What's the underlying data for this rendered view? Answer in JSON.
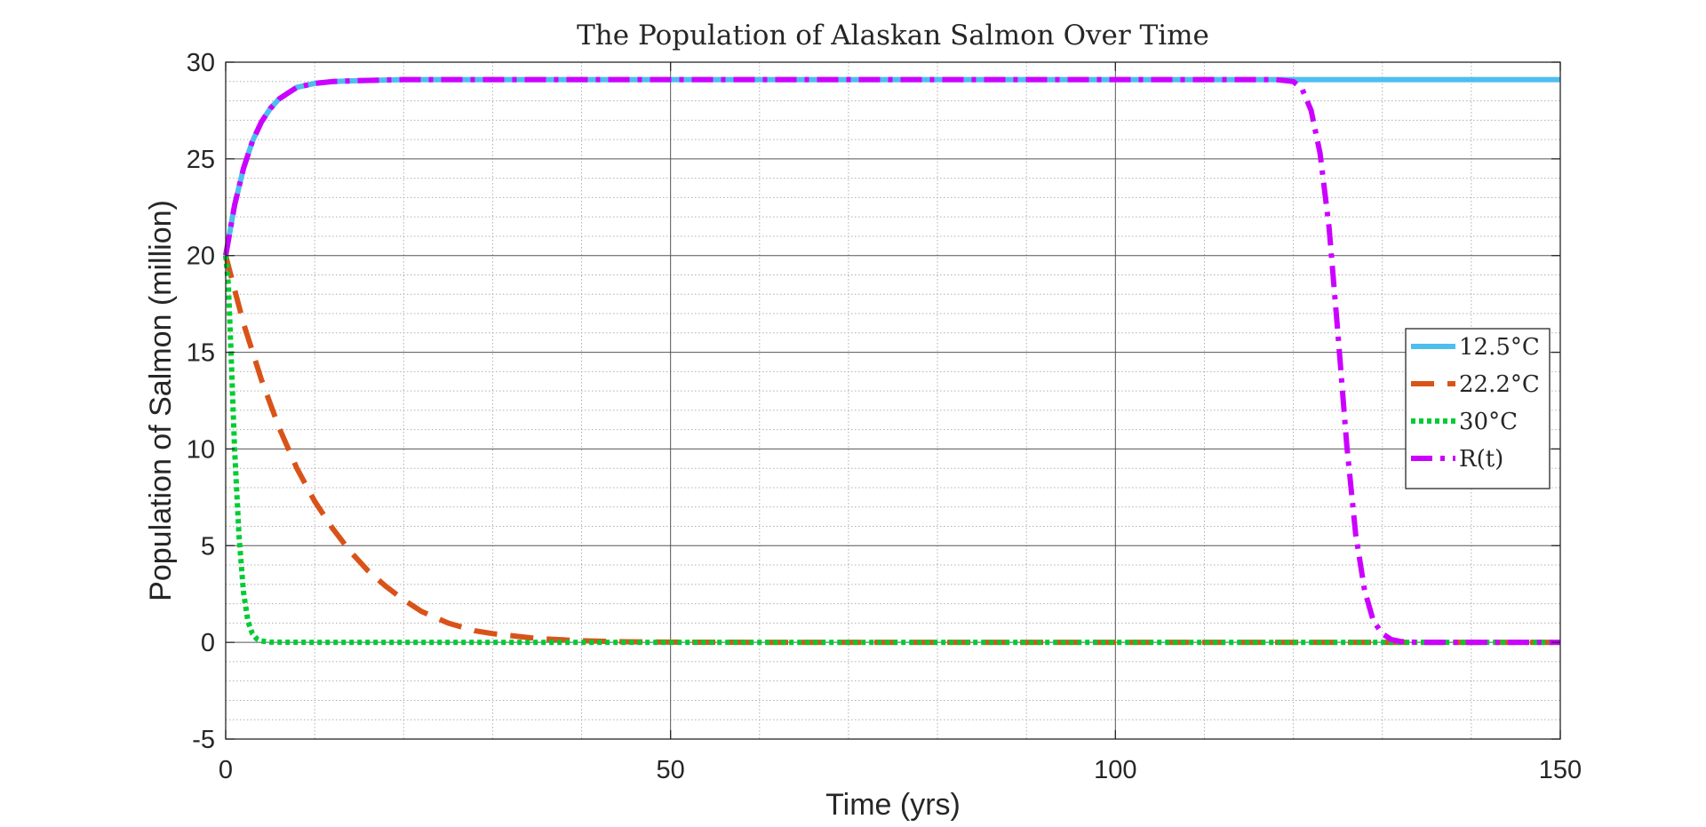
{
  "chart_data": {
    "type": "line",
    "title": "The Population of Alaskan Salmon Over Time",
    "xlabel": "Time (yrs)",
    "ylabel": "Population of Salmon (million)",
    "xlim": [
      0,
      150
    ],
    "ylim": [
      -5,
      30
    ],
    "xticks": [
      0,
      50,
      100,
      150
    ],
    "yticks": [
      -5,
      0,
      5,
      10,
      15,
      20,
      25,
      30
    ],
    "xtick_labels": [
      "0",
      "50",
      "100",
      "150"
    ],
    "ytick_labels": [
      "-5",
      "0",
      "5",
      "10",
      "15",
      "20",
      "25",
      "30"
    ],
    "grid": true,
    "minor_grid": true,
    "legend_position": "right",
    "series": [
      {
        "name": "12.5°C",
        "color": "#4DBEEE",
        "style": "solid",
        "x": [
          0,
          1,
          2,
          3,
          4,
          5,
          6,
          7,
          8,
          9,
          10,
          12,
          15,
          20,
          30,
          50,
          80,
          100,
          120,
          125,
          130,
          140,
          150
        ],
        "y": [
          20,
          22.6,
          24.5,
          25.9,
          26.9,
          27.6,
          28.1,
          28.4,
          28.7,
          28.8,
          28.9,
          29.0,
          29.05,
          29.1,
          29.1,
          29.1,
          29.1,
          29.1,
          29.1,
          29.1,
          29.1,
          29.1,
          29.1
        ]
      },
      {
        "name": "22.2°C",
        "color": "#D95319",
        "style": "dashed",
        "x": [
          0,
          2,
          4,
          6,
          8,
          10,
          12,
          14,
          16,
          18,
          20,
          22,
          25,
          28,
          30,
          35,
          40,
          45,
          50,
          60,
          80,
          100,
          150
        ],
        "y": [
          20,
          16.5,
          13.6,
          11.1,
          9.0,
          7.3,
          5.9,
          4.7,
          3.7,
          2.9,
          2.2,
          1.6,
          1.0,
          0.6,
          0.45,
          0.2,
          0.08,
          0.03,
          0.01,
          0,
          0,
          0,
          0
        ]
      },
      {
        "name": "30°C",
        "color": "#00CC33",
        "style": "dotted",
        "x": [
          0,
          0.3,
          0.6,
          1.0,
          1.5,
          2.0,
          2.5,
          3.0,
          3.5,
          4.0,
          5.0,
          10,
          50,
          100,
          150
        ],
        "y": [
          20,
          18.5,
          15.0,
          10.0,
          5.5,
          2.6,
          1.1,
          0.45,
          0.18,
          0.07,
          0.01,
          0,
          0,
          0,
          0
        ]
      },
      {
        "name": "R(t)",
        "color": "#CC00FF",
        "style": "dashdot",
        "x": [
          0,
          1,
          2,
          3,
          4,
          5,
          6,
          7,
          8,
          9,
          10,
          12,
          15,
          20,
          50,
          80,
          100,
          118,
          120,
          121,
          122,
          123,
          124,
          125,
          126,
          127,
          128,
          129,
          130,
          131,
          132,
          133,
          135,
          140,
          150
        ],
        "y": [
          20,
          22.6,
          24.5,
          25.9,
          26.9,
          27.6,
          28.1,
          28.4,
          28.7,
          28.8,
          28.9,
          29.0,
          29.05,
          29.1,
          29.1,
          29.1,
          29.1,
          29.1,
          29.0,
          28.6,
          27.5,
          25.3,
          21.5,
          16.0,
          10.2,
          5.6,
          2.7,
          1.1,
          0.45,
          0.15,
          0.05,
          0.01,
          0,
          0,
          0
        ]
      }
    ]
  }
}
